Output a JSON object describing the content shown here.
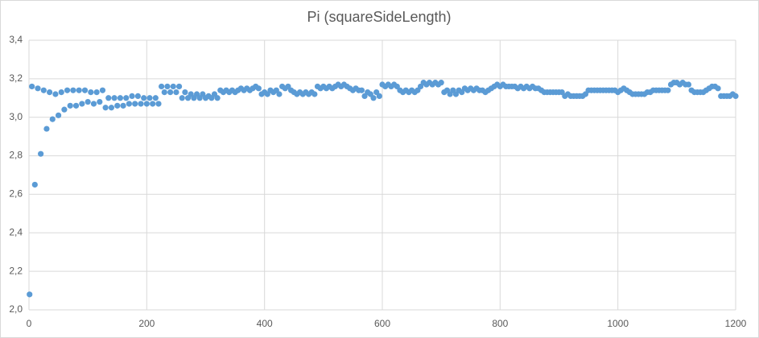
{
  "chart_data": {
    "type": "scatter",
    "title": "Pi (squareSideLength)",
    "x": [
      1,
      5,
      10,
      15,
      20,
      25,
      30,
      35,
      40,
      45,
      50,
      55,
      60,
      65,
      70,
      75,
      80,
      85,
      90,
      95,
      100,
      105,
      110,
      115,
      120,
      125,
      130,
      135,
      140,
      145,
      150,
      155,
      160,
      165,
      170,
      175,
      180,
      185,
      190,
      195,
      200,
      205,
      210,
      215,
      220,
      225,
      230,
      235,
      240,
      245,
      250,
      255,
      260,
      265,
      270,
      275,
      280,
      285,
      290,
      295,
      300,
      305,
      310,
      315,
      320,
      325,
      330,
      335,
      340,
      345,
      350,
      355,
      360,
      365,
      370,
      375,
      380,
      385,
      390,
      395,
      400,
      405,
      410,
      415,
      420,
      425,
      430,
      435,
      440,
      445,
      450,
      455,
      460,
      465,
      470,
      475,
      480,
      485,
      490,
      495,
      500,
      505,
      510,
      515,
      520,
      525,
      530,
      535,
      540,
      545,
      550,
      555,
      560,
      565,
      570,
      575,
      580,
      585,
      590,
      595,
      600,
      605,
      610,
      615,
      620,
      625,
      630,
      635,
      640,
      645,
      650,
      655,
      660,
      665,
      670,
      675,
      680,
      685,
      690,
      695,
      700,
      705,
      710,
      715,
      720,
      725,
      730,
      735,
      740,
      745,
      750,
      755,
      760,
      765,
      770,
      775,
      780,
      785,
      790,
      795,
      800,
      805,
      810,
      815,
      820,
      825,
      830,
      835,
      840,
      845,
      850,
      855,
      860,
      865,
      870,
      875,
      880,
      885,
      890,
      895,
      900,
      905,
      910,
      915,
      920,
      925,
      930,
      935,
      940,
      945,
      950,
      955,
      960,
      965,
      970,
      975,
      980,
      985,
      990,
      995,
      1000,
      1005,
      1010,
      1015,
      1020,
      1025,
      1030,
      1035,
      1040,
      1045,
      1050,
      1055,
      1060,
      1065,
      1070,
      1075,
      1080,
      1085,
      1090,
      1095,
      1100,
      1105,
      1110,
      1115,
      1120,
      1125,
      1130,
      1135,
      1140,
      1145,
      1150,
      1155,
      1160,
      1165,
      1170,
      1175,
      1180,
      1185,
      1190,
      1195,
      1200
    ],
    "values": [
      2.08,
      3.16,
      2.65,
      3.15,
      2.81,
      3.14,
      2.94,
      3.13,
      2.99,
      3.12,
      3.01,
      3.13,
      3.04,
      3.14,
      3.06,
      3.14,
      3.06,
      3.14,
      3.07,
      3.14,
      3.08,
      3.13,
      3.07,
      3.13,
      3.08,
      3.14,
      3.05,
      3.1,
      3.05,
      3.1,
      3.06,
      3.1,
      3.06,
      3.1,
      3.07,
      3.11,
      3.07,
      3.11,
      3.07,
      3.1,
      3.07,
      3.1,
      3.07,
      3.1,
      3.07,
      3.16,
      3.13,
      3.16,
      3.13,
      3.16,
      3.13,
      3.16,
      3.1,
      3.13,
      3.1,
      3.12,
      3.1,
      3.12,
      3.1,
      3.12,
      3.1,
      3.11,
      3.1,
      3.12,
      3.1,
      3.14,
      3.13,
      3.14,
      3.13,
      3.14,
      3.13,
      3.14,
      3.15,
      3.14,
      3.15,
      3.14,
      3.15,
      3.16,
      3.15,
      3.12,
      3.13,
      3.12,
      3.14,
      3.13,
      3.14,
      3.12,
      3.16,
      3.15,
      3.16,
      3.14,
      3.13,
      3.12,
      3.13,
      3.12,
      3.13,
      3.12,
      3.13,
      3.12,
      3.16,
      3.15,
      3.16,
      3.15,
      3.16,
      3.15,
      3.16,
      3.17,
      3.16,
      3.17,
      3.16,
      3.15,
      3.14,
      3.15,
      3.14,
      3.14,
      3.11,
      3.13,
      3.12,
      3.1,
      3.13,
      3.11,
      3.17,
      3.16,
      3.17,
      3.16,
      3.17,
      3.16,
      3.14,
      3.13,
      3.14,
      3.13,
      3.14,
      3.13,
      3.14,
      3.16,
      3.18,
      3.17,
      3.18,
      3.17,
      3.18,
      3.17,
      3.18,
      3.13,
      3.14,
      3.12,
      3.14,
      3.12,
      3.14,
      3.13,
      3.15,
      3.14,
      3.15,
      3.14,
      3.15,
      3.14,
      3.14,
      3.13,
      3.14,
      3.15,
      3.16,
      3.17,
      3.16,
      3.17,
      3.16,
      3.16,
      3.16,
      3.16,
      3.15,
      3.16,
      3.15,
      3.16,
      3.15,
      3.16,
      3.15,
      3.15,
      3.14,
      3.13,
      3.13,
      3.13,
      3.13,
      3.13,
      3.13,
      3.13,
      3.11,
      3.12,
      3.11,
      3.11,
      3.11,
      3.11,
      3.11,
      3.12,
      3.14,
      3.14,
      3.14,
      3.14,
      3.14,
      3.14,
      3.14,
      3.14,
      3.14,
      3.14,
      3.13,
      3.14,
      3.15,
      3.14,
      3.13,
      3.12,
      3.12,
      3.12,
      3.12,
      3.12,
      3.13,
      3.13,
      3.14,
      3.14,
      3.14,
      3.14,
      3.14,
      3.14,
      3.17,
      3.18,
      3.18,
      3.17,
      3.18,
      3.17,
      3.17,
      3.14,
      3.13,
      3.13,
      3.13,
      3.13,
      3.14,
      3.15,
      3.16,
      3.16,
      3.15,
      3.11,
      3.11,
      3.11,
      3.11,
      3.12,
      3.11
    ],
    "color": "#5b9bd5",
    "xlim": [
      0,
      1200
    ],
    "xticks": [
      0,
      200,
      400,
      600,
      800,
      1000,
      1200
    ],
    "ylim": [
      2.0,
      3.4
    ],
    "yticks": [
      {
        "value": 2.0,
        "label": "2,0"
      },
      {
        "value": 2.2,
        "label": "2,2"
      },
      {
        "value": 2.4,
        "label": "2,4"
      },
      {
        "value": 2.6,
        "label": "2,6"
      },
      {
        "value": 2.8,
        "label": "2,8"
      },
      {
        "value": 3.0,
        "label": "3,0"
      },
      {
        "value": 3.2,
        "label": "3,2"
      },
      {
        "value": 3.4,
        "label": "3,4"
      }
    ],
    "grid": true
  }
}
